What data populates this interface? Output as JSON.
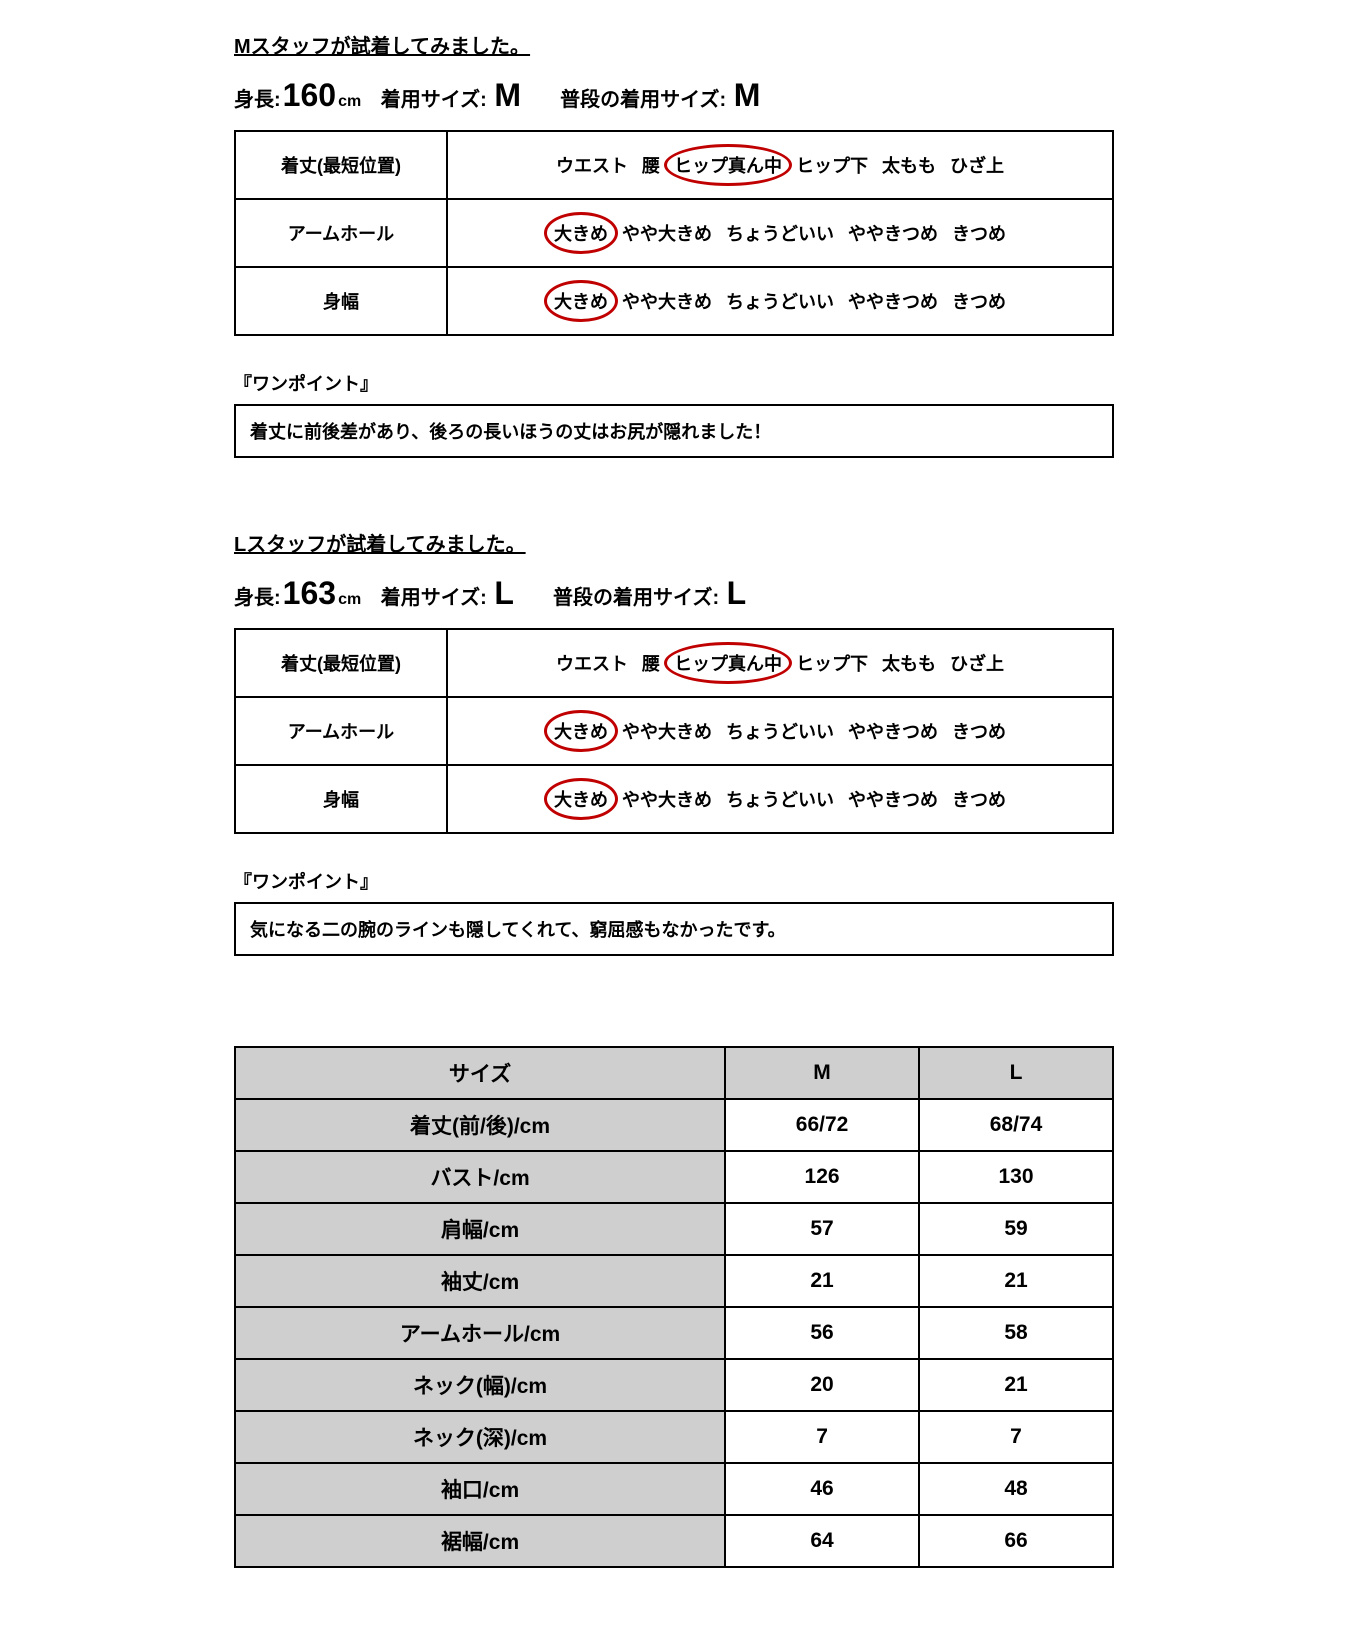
{
  "colors": {
    "circle": "#c00000",
    "gray": "#cfcfcf",
    "border": "#000000",
    "text": "#000000",
    "bg": "#ffffff"
  },
  "staff": [
    {
      "title": "Mスタッフが試着してみました。",
      "stats": {
        "height_label": "身長:",
        "height_value": "160",
        "height_unit": "cm",
        "tryon_label": "着用サイズ:",
        "tryon_value": "M",
        "usual_label": "普段の着用サイズ:",
        "usual_value": "M"
      },
      "rows": [
        {
          "label": "着丈(最短位置)",
          "options": [
            "ウエスト",
            "腰",
            "ヒップ真ん中",
            "ヒップ下",
            "太もも",
            "ひざ上"
          ],
          "circled_index": 2
        },
        {
          "label": "アームホール",
          "options": [
            "大きめ",
            "やや大きめ",
            "ちょうどいい",
            "ややきつめ",
            "きつめ"
          ],
          "circled_index": 0
        },
        {
          "label": "身幅",
          "options": [
            "大きめ",
            "やや大きめ",
            "ちょうどいい",
            "ややきつめ",
            "きつめ"
          ],
          "circled_index": 0
        }
      ],
      "onepoint_label": "『ワンポイント』",
      "onepoint_text": "着丈に前後差があり、後ろの長いほうの丈はお尻が隠れました！"
    },
    {
      "title": "Lスタッフが試着してみました。",
      "stats": {
        "height_label": "身長:",
        "height_value": "163",
        "height_unit": "cm",
        "tryon_label": "着用サイズ:",
        "tryon_value": "L",
        "usual_label": "普段の着用サイズ:",
        "usual_value": "L"
      },
      "rows": [
        {
          "label": "着丈(最短位置)",
          "options": [
            "ウエスト",
            "腰",
            "ヒップ真ん中",
            "ヒップ下",
            "太もも",
            "ひざ上"
          ],
          "circled_index": 2
        },
        {
          "label": "アームホール",
          "options": [
            "大きめ",
            "やや大きめ",
            "ちょうどいい",
            "ややきつめ",
            "きつめ"
          ],
          "circled_index": 0
        },
        {
          "label": "身幅",
          "options": [
            "大きめ",
            "やや大きめ",
            "ちょうどいい",
            "ややきつめ",
            "きつめ"
          ],
          "circled_index": 0
        }
      ],
      "onepoint_label": "『ワンポイント』",
      "onepoint_text": "気になる二の腕のラインも隠してくれて、窮屈感もなかったです。"
    }
  ],
  "size_table": {
    "header": [
      "サイズ",
      "M",
      "L"
    ],
    "rows": [
      [
        "着丈(前/後)/cm",
        "66/72",
        "68/74"
      ],
      [
        "バスト/cm",
        "126",
        "130"
      ],
      [
        "肩幅/cm",
        "57",
        "59"
      ],
      [
        "袖丈/cm",
        "21",
        "21"
      ],
      [
        "アームホール/cm",
        "56",
        "58"
      ],
      [
        "ネック(幅)/cm",
        "20",
        "21"
      ],
      [
        "ネック(深)/cm",
        "7",
        "7"
      ],
      [
        "袖口/cm",
        "46",
        "48"
      ],
      [
        "裾幅/cm",
        "64",
        "66"
      ]
    ]
  }
}
